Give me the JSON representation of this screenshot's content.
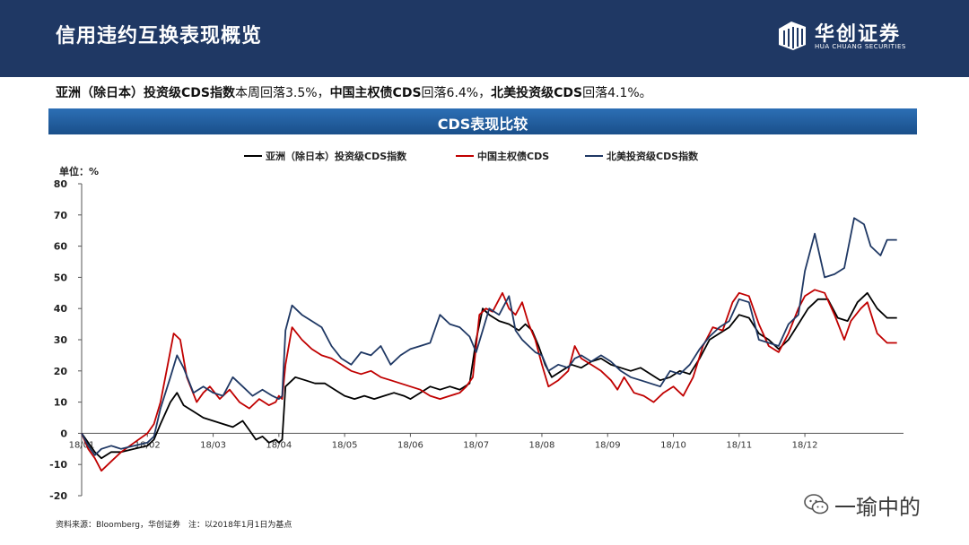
{
  "header": {
    "title": "信用违约互换表现概览"
  },
  "logo": {
    "name_cn": "华创证券",
    "name_en": "HUA CHUANG SECURITIES"
  },
  "summary": {
    "s1_bold": "亚洲（除日本）投资级CDS指数",
    "s1_text": "本周回落3.5%，",
    "s2_bold": "中国主权债CDS",
    "s2_text": "回落6.4%，",
    "s3_bold": "北美投资级CDS",
    "s3_text": "回落4.1%。"
  },
  "banner": {
    "title": "CDS表现比较"
  },
  "footer": {
    "source": "资料来源：Bloomberg，华创证券　注：以2018年1月1日为基点"
  },
  "watermark": {
    "text": "一瑜中的"
  },
  "colors": {
    "header_bg": "#1f3864",
    "asia": "#000000",
    "china": "#c00000",
    "na": "#1f3864"
  },
  "chart_data": {
    "type": "line",
    "title": "",
    "unit_label": "单位：%",
    "xlabel": "",
    "ylabel": "",
    "ylim": [
      -20,
      80
    ],
    "yticks": [
      -20,
      -10,
      0,
      10,
      20,
      30,
      40,
      50,
      60,
      70,
      80
    ],
    "x_range": [
      0,
      12.5
    ],
    "x_ticks": [
      {
        "x": 0,
        "label": "18/01"
      },
      {
        "x": 1,
        "label": "18/02"
      },
      {
        "x": 2,
        "label": "18/03"
      },
      {
        "x": 3,
        "label": "18/04"
      },
      {
        "x": 4,
        "label": "18/05"
      },
      {
        "x": 5,
        "label": "18/06"
      },
      {
        "x": 6,
        "label": "18/07"
      },
      {
        "x": 7,
        "label": "18/08"
      },
      {
        "x": 8,
        "label": "18/09"
      },
      {
        "x": 9,
        "label": "18/10"
      },
      {
        "x": 10,
        "label": "18/11"
      },
      {
        "x": 11,
        "label": "18/12"
      }
    ],
    "grid": false,
    "legend": "top",
    "series": [
      {
        "name": "亚洲（除日本）投资级CDS指数",
        "color": "#000000",
        "points": [
          [
            0,
            0
          ],
          [
            0.1,
            -3
          ],
          [
            0.2,
            -6
          ],
          [
            0.3,
            -8
          ],
          [
            0.45,
            -6
          ],
          [
            0.6,
            -6
          ],
          [
            0.8,
            -5
          ],
          [
            1.0,
            -4
          ],
          [
            1.1,
            -2
          ],
          [
            1.2,
            3
          ],
          [
            1.35,
            10
          ],
          [
            1.45,
            13
          ],
          [
            1.55,
            9
          ],
          [
            1.7,
            7
          ],
          [
            1.85,
            5
          ],
          [
            2.0,
            4
          ],
          [
            2.15,
            3
          ],
          [
            2.3,
            2
          ],
          [
            2.45,
            4
          ],
          [
            2.55,
            1
          ],
          [
            2.65,
            -2
          ],
          [
            2.75,
            -1
          ],
          [
            2.85,
            -3
          ],
          [
            2.95,
            -2
          ],
          [
            3.0,
            -3
          ],
          [
            3.05,
            -2
          ],
          [
            3.1,
            15
          ],
          [
            3.25,
            18
          ],
          [
            3.4,
            17
          ],
          [
            3.55,
            16
          ],
          [
            3.7,
            16
          ],
          [
            3.85,
            14
          ],
          [
            4.0,
            12
          ],
          [
            4.15,
            11
          ],
          [
            4.3,
            12
          ],
          [
            4.45,
            11
          ],
          [
            4.6,
            12
          ],
          [
            4.75,
            13
          ],
          [
            4.9,
            12
          ],
          [
            5.0,
            11
          ],
          [
            5.15,
            13
          ],
          [
            5.3,
            15
          ],
          [
            5.45,
            14
          ],
          [
            5.6,
            15
          ],
          [
            5.75,
            14
          ],
          [
            5.9,
            16
          ],
          [
            6.0,
            30
          ],
          [
            6.1,
            40
          ],
          [
            6.2,
            38
          ],
          [
            6.35,
            36
          ],
          [
            6.5,
            35
          ],
          [
            6.65,
            33
          ],
          [
            6.75,
            35
          ],
          [
            6.85,
            33
          ],
          [
            6.95,
            28
          ],
          [
            7.05,
            22
          ],
          [
            7.15,
            18
          ],
          [
            7.3,
            20
          ],
          [
            7.45,
            22
          ],
          [
            7.6,
            21
          ],
          [
            7.75,
            23
          ],
          [
            7.9,
            24
          ],
          [
            8.05,
            22
          ],
          [
            8.2,
            21
          ],
          [
            8.35,
            20
          ],
          [
            8.5,
            21
          ],
          [
            8.65,
            19
          ],
          [
            8.8,
            17
          ],
          [
            8.95,
            18
          ],
          [
            9.1,
            20
          ],
          [
            9.25,
            19
          ],
          [
            9.4,
            24
          ],
          [
            9.55,
            30
          ],
          [
            9.7,
            32
          ],
          [
            9.85,
            34
          ],
          [
            10.0,
            38
          ],
          [
            10.15,
            37
          ],
          [
            10.3,
            32
          ],
          [
            10.45,
            30
          ],
          [
            10.6,
            27
          ],
          [
            10.75,
            30
          ],
          [
            10.9,
            35
          ],
          [
            11.05,
            40
          ],
          [
            11.2,
            43
          ],
          [
            11.35,
            43
          ],
          [
            11.5,
            37
          ],
          [
            11.65,
            36
          ],
          [
            11.8,
            42
          ],
          [
            11.95,
            45
          ],
          [
            12.1,
            40
          ],
          [
            12.25,
            37
          ],
          [
            12.4,
            37
          ]
        ]
      },
      {
        "name": "中国主权债CDS",
        "color": "#c00000",
        "points": [
          [
            0,
            0
          ],
          [
            0.1,
            -5
          ],
          [
            0.2,
            -8
          ],
          [
            0.3,
            -12
          ],
          [
            0.45,
            -9
          ],
          [
            0.6,
            -6
          ],
          [
            0.8,
            -3
          ],
          [
            1.0,
            0
          ],
          [
            1.1,
            3
          ],
          [
            1.2,
            10
          ],
          [
            1.3,
            21
          ],
          [
            1.4,
            32
          ],
          [
            1.5,
            30
          ],
          [
            1.6,
            18
          ],
          [
            1.75,
            10
          ],
          [
            1.85,
            13
          ],
          [
            1.95,
            15
          ],
          [
            2.1,
            11
          ],
          [
            2.25,
            14
          ],
          [
            2.4,
            10
          ],
          [
            2.55,
            8
          ],
          [
            2.7,
            11
          ],
          [
            2.85,
            9
          ],
          [
            2.95,
            10
          ],
          [
            3.0,
            12
          ],
          [
            3.05,
            11
          ],
          [
            3.1,
            22
          ],
          [
            3.2,
            34
          ],
          [
            3.35,
            30
          ],
          [
            3.5,
            27
          ],
          [
            3.65,
            25
          ],
          [
            3.8,
            24
          ],
          [
            3.95,
            22
          ],
          [
            4.1,
            20
          ],
          [
            4.25,
            19
          ],
          [
            4.4,
            20
          ],
          [
            4.55,
            18
          ],
          [
            4.7,
            17
          ],
          [
            4.85,
            16
          ],
          [
            5.0,
            15
          ],
          [
            5.15,
            14
          ],
          [
            5.3,
            12
          ],
          [
            5.45,
            11
          ],
          [
            5.6,
            12
          ],
          [
            5.75,
            13
          ],
          [
            5.85,
            15
          ],
          [
            5.95,
            18
          ],
          [
            6.05,
            38
          ],
          [
            6.15,
            40
          ],
          [
            6.25,
            39
          ],
          [
            6.4,
            45
          ],
          [
            6.5,
            40
          ],
          [
            6.6,
            38
          ],
          [
            6.7,
            42
          ],
          [
            6.8,
            35
          ],
          [
            6.9,
            30
          ],
          [
            7.0,
            22
          ],
          [
            7.1,
            15
          ],
          [
            7.25,
            17
          ],
          [
            7.4,
            20
          ],
          [
            7.5,
            28
          ],
          [
            7.6,
            24
          ],
          [
            7.75,
            22
          ],
          [
            7.9,
            20
          ],
          [
            8.05,
            17
          ],
          [
            8.15,
            14
          ],
          [
            8.25,
            18
          ],
          [
            8.4,
            13
          ],
          [
            8.55,
            12
          ],
          [
            8.7,
            10
          ],
          [
            8.85,
            13
          ],
          [
            9.0,
            15
          ],
          [
            9.15,
            12
          ],
          [
            9.3,
            18
          ],
          [
            9.45,
            28
          ],
          [
            9.6,
            34
          ],
          [
            9.75,
            33
          ],
          [
            9.9,
            42
          ],
          [
            10.0,
            45
          ],
          [
            10.15,
            44
          ],
          [
            10.3,
            35
          ],
          [
            10.45,
            28
          ],
          [
            10.6,
            26
          ],
          [
            10.75,
            32
          ],
          [
            10.9,
            40
          ],
          [
            11.0,
            44
          ],
          [
            11.15,
            46
          ],
          [
            11.3,
            45
          ],
          [
            11.45,
            38
          ],
          [
            11.6,
            30
          ],
          [
            11.7,
            36
          ],
          [
            11.85,
            40
          ],
          [
            11.95,
            42
          ],
          [
            12.1,
            32
          ],
          [
            12.25,
            29
          ],
          [
            12.4,
            29
          ]
        ]
      },
      {
        "name": "北美投资级CDS指数",
        "color": "#1f3864",
        "points": [
          [
            0,
            0
          ],
          [
            0.1,
            -4
          ],
          [
            0.2,
            -7
          ],
          [
            0.3,
            -5
          ],
          [
            0.45,
            -4
          ],
          [
            0.6,
            -5
          ],
          [
            0.8,
            -4
          ],
          [
            1.0,
            -3
          ],
          [
            1.1,
            -1
          ],
          [
            1.2,
            8
          ],
          [
            1.35,
            18
          ],
          [
            1.45,
            25
          ],
          [
            1.55,
            21
          ],
          [
            1.7,
            13
          ],
          [
            1.85,
            15
          ],
          [
            2.0,
            13
          ],
          [
            2.15,
            12
          ],
          [
            2.3,
            18
          ],
          [
            2.45,
            15
          ],
          [
            2.6,
            12
          ],
          [
            2.75,
            14
          ],
          [
            2.9,
            12
          ],
          [
            3.0,
            11
          ],
          [
            3.05,
            12
          ],
          [
            3.1,
            33
          ],
          [
            3.2,
            41
          ],
          [
            3.35,
            38
          ],
          [
            3.5,
            36
          ],
          [
            3.65,
            34
          ],
          [
            3.8,
            28
          ],
          [
            3.95,
            24
          ],
          [
            4.1,
            22
          ],
          [
            4.25,
            26
          ],
          [
            4.4,
            25
          ],
          [
            4.55,
            28
          ],
          [
            4.7,
            22
          ],
          [
            4.85,
            25
          ],
          [
            5.0,
            27
          ],
          [
            5.15,
            28
          ],
          [
            5.3,
            29
          ],
          [
            5.45,
            38
          ],
          [
            5.6,
            35
          ],
          [
            5.75,
            34
          ],
          [
            5.9,
            31
          ],
          [
            6.0,
            26
          ],
          [
            6.1,
            33
          ],
          [
            6.2,
            40
          ],
          [
            6.35,
            38
          ],
          [
            6.5,
            44
          ],
          [
            6.6,
            33
          ],
          [
            6.7,
            30
          ],
          [
            6.8,
            28
          ],
          [
            6.9,
            26
          ],
          [
            7.0,
            25
          ],
          [
            7.1,
            20
          ],
          [
            7.25,
            22
          ],
          [
            7.4,
            21
          ],
          [
            7.5,
            24
          ],
          [
            7.6,
            25
          ],
          [
            7.75,
            23
          ],
          [
            7.9,
            25
          ],
          [
            8.05,
            23
          ],
          [
            8.2,
            20
          ],
          [
            8.35,
            18
          ],
          [
            8.5,
            17
          ],
          [
            8.65,
            16
          ],
          [
            8.8,
            15
          ],
          [
            8.95,
            20
          ],
          [
            9.1,
            19
          ],
          [
            9.25,
            22
          ],
          [
            9.4,
            27
          ],
          [
            9.55,
            31
          ],
          [
            9.7,
            34
          ],
          [
            9.85,
            36
          ],
          [
            10.0,
            43
          ],
          [
            10.15,
            42
          ],
          [
            10.3,
            30
          ],
          [
            10.45,
            29
          ],
          [
            10.6,
            28
          ],
          [
            10.75,
            35
          ],
          [
            10.9,
            38
          ],
          [
            11.0,
            52
          ],
          [
            11.15,
            64
          ],
          [
            11.3,
            50
          ],
          [
            11.45,
            51
          ],
          [
            11.6,
            53
          ],
          [
            11.75,
            69
          ],
          [
            11.9,
            67
          ],
          [
            12.0,
            60
          ],
          [
            12.15,
            57
          ],
          [
            12.25,
            62
          ],
          [
            12.4,
            62
          ]
        ]
      }
    ]
  }
}
